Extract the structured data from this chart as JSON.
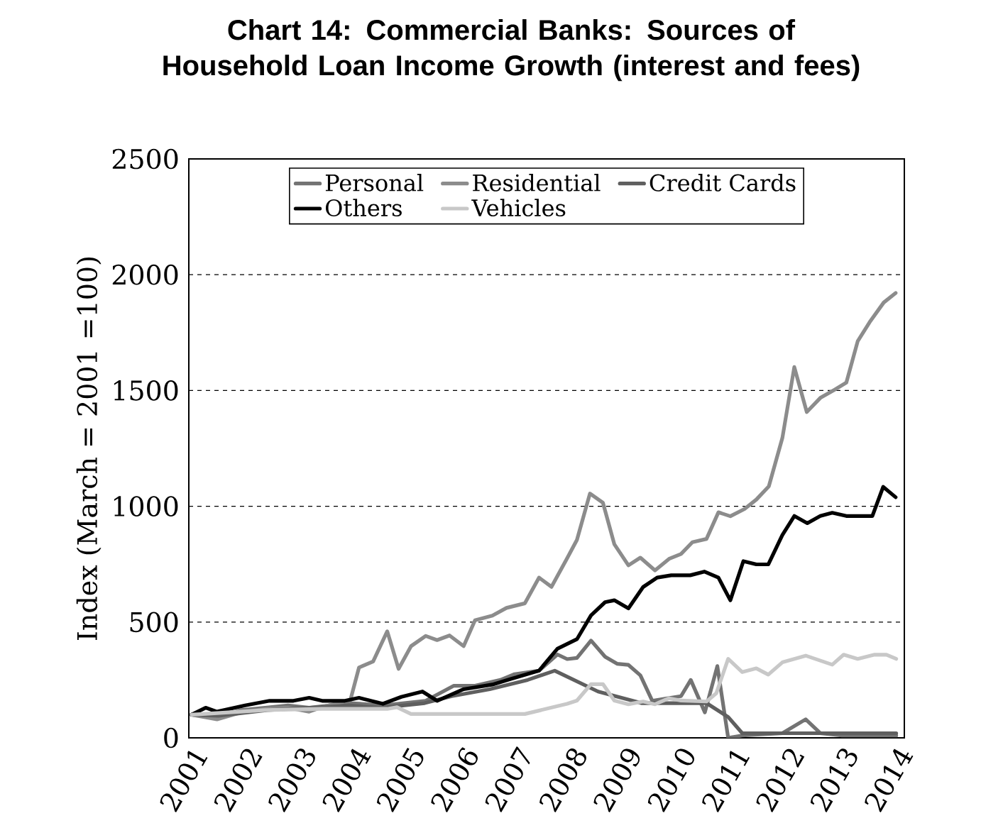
{
  "chart_data": {
    "type": "line",
    "title": "Chart 14: Commercial Banks: Sources of Household Loan Income Growth (interest and fees)",
    "ylabel": "Index (March = 2001 =100)",
    "xlim": [
      2000.95,
      2014.15
    ],
    "xticks": [
      2001,
      2002,
      2003,
      2004,
      2005,
      2006,
      2007,
      2008,
      2009,
      2010,
      2011,
      2012,
      2013,
      2014
    ],
    "ylim": [
      0,
      2500
    ],
    "yticks": [
      0,
      500,
      1000,
      1500,
      2000,
      2500
    ],
    "grid": "y",
    "legend": "top",
    "marker": "none",
    "line_style": "solid",
    "series": [
      {
        "name": "Personal",
        "color": "#737373",
        "x": [
          2001,
          2001.47,
          2001.92,
          2002.36,
          2002.78,
          2003.17,
          2003.93,
          2004.53,
          2005.32,
          2005.84,
          2006.23,
          2006.7,
          2006.96,
          2007.41,
          2007.75,
          2007.93,
          2008.11,
          2008.37,
          2008.63,
          2008.85,
          2009.06,
          2009.28,
          2009.5,
          2009.76,
          2010.03,
          2010.21,
          2010.47,
          2010.7,
          2010.9,
          2011.16,
          2011.9,
          2012.33,
          2012.6,
          2013.0,
          2014.0
        ],
        "values": [
          100,
          90,
          120,
          130,
          140,
          130,
          150,
          140,
          160,
          225,
          225,
          250,
          275,
          290,
          360,
          340,
          345,
          420,
          350,
          320,
          315,
          270,
          160,
          170,
          180,
          250,
          110,
          310,
          0,
          10,
          20,
          80,
          20,
          10,
          10
        ]
      },
      {
        "name": "Residential",
        "color": "#8c8c8c",
        "x": [
          2001,
          2001.47,
          2001.92,
          2002.36,
          2002.78,
          2003.17,
          2003.41,
          2003.93,
          2004.09,
          2004.35,
          2004.61,
          2004.82,
          2005.05,
          2005.32,
          2005.53,
          2005.76,
          2006.02,
          2006.23,
          2006.55,
          2006.81,
          2007.15,
          2007.41,
          2007.64,
          2007.93,
          2008.11,
          2008.35,
          2008.59,
          2008.8,
          2009.06,
          2009.28,
          2009.55,
          2009.81,
          2010.03,
          2010.24,
          2010.5,
          2010.72,
          2010.94,
          2011.2,
          2011.42,
          2011.65,
          2011.9,
          2012.12,
          2012.35,
          2012.6,
          2012.86,
          2013.08,
          2013.29,
          2013.51,
          2013.77,
          2013.99
        ],
        "values": [
          100,
          80,
          110,
          125,
          130,
          113,
          133,
          163,
          304,
          330,
          460,
          298,
          396,
          440,
          422,
          442,
          396,
          508,
          528,
          561,
          581,
          692,
          652,
          776,
          855,
          1055,
          1015,
          836,
          745,
          778,
          723,
          773,
          794,
          845,
          859,
          974,
          957,
          988,
          1029,
          1086,
          1295,
          1601,
          1407,
          1468,
          1503,
          1534,
          1713,
          1795,
          1880,
          1921
        ]
      },
      {
        "name": "Credit Cards",
        "color": "#5f5f5f",
        "x": [
          2001,
          2001.5,
          2002.4,
          2003.2,
          2003.9,
          2004.5,
          2005.3,
          2005.8,
          2006.5,
          2007.2,
          2007.7,
          2008.5,
          2009.3,
          2010.5,
          2010.9,
          2011.16,
          2012.0,
          2013.0,
          2014.0
        ],
        "values": [
          100,
          95,
          120,
          130,
          140,
          130,
          150,
          180,
          210,
          250,
          290,
          200,
          150,
          150,
          90,
          20,
          20,
          20,
          20
        ]
      },
      {
        "name": "Others",
        "color": "#000000",
        "x": [
          2001,
          2001.26,
          2001.47,
          2001.99,
          2002.44,
          2002.88,
          2003.17,
          2003.41,
          2003.83,
          2004.09,
          2004.53,
          2004.87,
          2005.26,
          2005.53,
          2006.02,
          2006.55,
          2006.89,
          2007.41,
          2007.75,
          2008.11,
          2008.37,
          2008.63,
          2008.8,
          2009.06,
          2009.33,
          2009.59,
          2009.85,
          2010.2,
          2010.46,
          2010.72,
          2010.94,
          2011.18,
          2011.42,
          2011.64,
          2011.9,
          2012.12,
          2012.36,
          2012.6,
          2012.82,
          2013.08,
          2013.56,
          2013.76,
          2013.99
        ],
        "values": [
          100,
          130,
          113,
          140,
          160,
          160,
          173,
          160,
          160,
          173,
          147,
          177,
          200,
          160,
          210,
          230,
          254,
          290,
          385,
          426,
          529,
          586,
          594,
          559,
          651,
          692,
          702,
          702,
          718,
          692,
          594,
          763,
          749,
          749,
          876,
          958,
          927,
          958,
          972,
          958,
          958,
          1084,
          1039
        ]
      },
      {
        "name": "Vehicles",
        "color": "#c8c8c8",
        "x": [
          2001,
          2002.36,
          2003.41,
          2004.61,
          2004.79,
          2005.05,
          2007.15,
          2007.93,
          2008.11,
          2008.37,
          2008.59,
          2008.8,
          2009.06,
          2009.33,
          2009.55,
          2009.81,
          2010.03,
          2010.5,
          2010.68,
          2010.9,
          2011.16,
          2011.42,
          2011.64,
          2011.9,
          2012.33,
          2012.82,
          2013.03,
          2013.29,
          2013.6,
          2013.82,
          2014.0
        ],
        "values": [
          100,
          120,
          125,
          125,
          132,
          103,
          103,
          147,
          161,
          232,
          232,
          161,
          145,
          157,
          145,
          171,
          161,
          157,
          192,
          341,
          284,
          300,
          273,
          326,
          355,
          316,
          359,
          341,
          359,
          359,
          341
        ]
      }
    ]
  }
}
